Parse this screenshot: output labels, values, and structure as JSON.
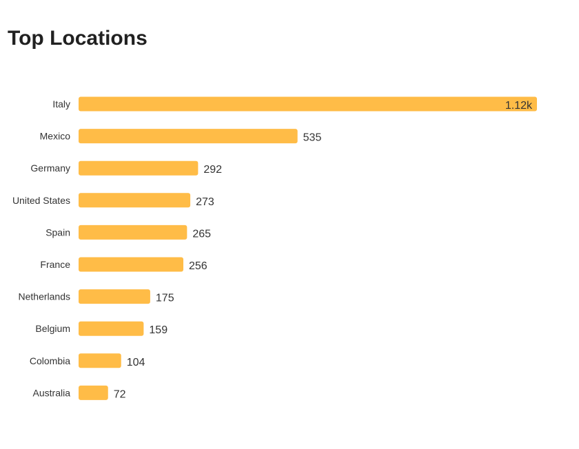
{
  "page": {
    "title": "Top Locations"
  },
  "colors": {
    "bar": "#FFBC47",
    "text": "#333333"
  },
  "chart_data": {
    "type": "bar",
    "orientation": "horizontal",
    "title": "Top Locations",
    "xlabel": "",
    "ylabel": "",
    "grid": false,
    "legend": "none",
    "categories": [
      "Italy",
      "Mexico",
      "Germany",
      "United States",
      "Spain",
      "France",
      "Netherlands",
      "Belgium",
      "Colombia",
      "Australia"
    ],
    "values": [
      1120,
      535,
      292,
      273,
      265,
      256,
      175,
      159,
      104,
      72
    ],
    "value_labels": [
      "1.12k",
      "535",
      "292",
      "273",
      "265",
      "256",
      "175",
      "159",
      "104",
      "72"
    ]
  }
}
